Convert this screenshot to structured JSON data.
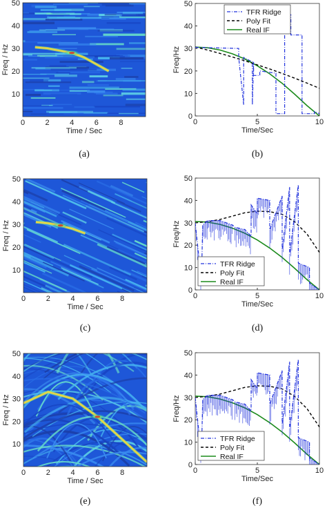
{
  "figure": {
    "panels": [
      {
        "id": "a",
        "caption": "(a)",
        "xlabel": "Time / Sec",
        "ylabel": "Freq / Hz",
        "xticks": [
          "0",
          "2",
          "4",
          "6",
          "8"
        ],
        "yticks": [
          "10",
          "20",
          "30",
          "40",
          "50"
        ]
      },
      {
        "id": "b",
        "caption": "(b)",
        "xlabel": "Time/Sec",
        "ylabel": "Freq/Hz",
        "xticks": [
          "0",
          "5",
          "10"
        ],
        "yticks": [
          "0",
          "10",
          "20",
          "30",
          "40",
          "50"
        ],
        "legend": [
          "TFR Ridge",
          "Poly Fit",
          "Real IF"
        ]
      },
      {
        "id": "c",
        "caption": "(c)",
        "xlabel": "Time / Sec",
        "ylabel": "Freq / Hz",
        "xticks": [
          "0",
          "2",
          "4",
          "6",
          "8"
        ],
        "yticks": [
          "10",
          "20",
          "30",
          "40",
          "50"
        ]
      },
      {
        "id": "d",
        "caption": "(d)",
        "xlabel": "Time/Sec",
        "ylabel": "Freq/Hz",
        "xticks": [
          "0",
          "5",
          "10"
        ],
        "yticks": [
          "0",
          "10",
          "20",
          "30",
          "40",
          "50"
        ],
        "legend": [
          "TFR Ridge",
          "Poly Fit",
          "Real IF"
        ]
      },
      {
        "id": "e",
        "caption": "(e)",
        "xlabel": "Time / Sec",
        "ylabel": "Freq / Hz",
        "xticks": [
          "0",
          "2",
          "4",
          "6",
          "8"
        ],
        "yticks": [
          "10",
          "20",
          "30",
          "40",
          "50"
        ]
      },
      {
        "id": "f",
        "caption": "(f)",
        "xlabel": "Time/Sec",
        "ylabel": "Freq/Hz",
        "xticks": [
          "0",
          "5",
          "10"
        ],
        "yticks": [
          "0",
          "10",
          "20",
          "30",
          "40",
          "50"
        ],
        "legend": [
          "TFR Ridge",
          "Poly Fit",
          "Real IF"
        ]
      }
    ],
    "colors": {
      "ridge": "#2233dd",
      "poly": "#000000",
      "real": "#1a8a1a",
      "spectrogram_base": "#1e57d8"
    }
  },
  "chart_data": [
    {
      "type": "heatmap",
      "panel": "a",
      "xlabel": "Time / Sec",
      "ylabel": "Freq / Hz",
      "xlim": [
        0,
        10
      ],
      "ylim": [
        0,
        50
      ],
      "ridge_hint": {
        "x": [
          1,
          2,
          3,
          4,
          5,
          6,
          7
        ],
        "y": [
          30.5,
          30,
          29,
          28,
          26,
          23,
          20
        ]
      }
    },
    {
      "type": "line",
      "panel": "b",
      "xlabel": "Time/Sec",
      "ylabel": "Freq/Hz",
      "xlim": [
        0,
        10
      ],
      "ylim": [
        0,
        50
      ],
      "legend_position": "top-right",
      "series": [
        {
          "name": "TFR Ridge",
          "x": [
            0,
            3.5,
            3.5,
            3.9,
            3.9,
            4.6,
            4.6,
            4.7,
            4.7,
            5.2,
            5.2,
            6.5,
            6.5,
            7.2,
            7.2,
            7.7,
            7.7,
            8.6,
            8.6,
            9.6,
            9.6,
            10
          ],
          "y": [
            30.5,
            30,
            26,
            5,
            26,
            24,
            5,
            24,
            18,
            18,
            20,
            19,
            1,
            1,
            45,
            45,
            36,
            36,
            1,
            1,
            2,
            1
          ]
        },
        {
          "name": "Poly Fit",
          "x": [
            0,
            1,
            2,
            3,
            4,
            5,
            6,
            7,
            8,
            9,
            10
          ],
          "y": [
            30.6,
            29.3,
            27.8,
            26.2,
            24.5,
            22.7,
            20.9,
            18.9,
            16.8,
            14.6,
            12.3
          ]
        },
        {
          "name": "Real IF",
          "x": [
            0,
            1,
            2,
            3,
            4,
            5,
            6,
            7,
            8,
            9,
            10
          ],
          "y": [
            30.6,
            30.3,
            29.3,
            27.6,
            25.3,
            22.3,
            18.7,
            14.5,
            9.7,
            4.6,
            0
          ]
        }
      ]
    },
    {
      "type": "heatmap",
      "panel": "c",
      "xlabel": "Time / Sec",
      "ylabel": "Freq / Hz",
      "xlim": [
        0,
        10
      ],
      "ylim": [
        0,
        50
      ],
      "ridge_hint": {
        "x": [
          1,
          2,
          3,
          4,
          5
        ],
        "y": [
          31,
          30.5,
          29.5,
          28,
          26
        ]
      }
    },
    {
      "type": "line",
      "panel": "d",
      "xlabel": "Time/Sec",
      "ylabel": "Freq/Hz",
      "xlim": [
        0,
        10
      ],
      "ylim": [
        0,
        50
      ],
      "legend_position": "bottom-left",
      "series": [
        {
          "name": "TFR Ridge",
          "x": [
            0,
            0.5,
            0.6,
            1,
            2,
            3,
            3.2,
            4,
            4.5,
            4.5,
            5,
            5,
            6,
            6,
            7,
            7,
            7.6,
            7.6,
            8.3,
            8.3,
            9.2,
            9.2,
            10
          ],
          "y": [
            30,
            4,
            29,
            31,
            31,
            29,
            28,
            27,
            24,
            38,
            34,
            41,
            40,
            27,
            42,
            18,
            46,
            16,
            47,
            12,
            10,
            3,
            0
          ]
        },
        {
          "name": "Poly Fit",
          "x": [
            0,
            1,
            2,
            3,
            4,
            5,
            6,
            7,
            8,
            9,
            10
          ],
          "y": [
            30,
            30.5,
            31.5,
            33,
            34.5,
            35.2,
            35,
            33.8,
            30.5,
            25,
            16.8
          ]
        },
        {
          "name": "Real IF",
          "x": [
            0,
            1,
            2,
            3,
            4,
            5,
            6,
            7,
            8,
            9,
            10
          ],
          "y": [
            30.6,
            30.3,
            29.3,
            27.6,
            25.3,
            22.3,
            18.7,
            14.5,
            9.7,
            4.6,
            0
          ]
        }
      ]
    },
    {
      "type": "heatmap",
      "panel": "e",
      "xlabel": "Time / Sec",
      "ylabel": "Freq / Hz",
      "xlim": [
        0,
        10
      ],
      "ylim": [
        0,
        50
      ],
      "ridge_hint": {
        "x": [
          0,
          2,
          4,
          6,
          8,
          10
        ],
        "y": [
          28,
          33,
          30,
          22,
          12,
          2
        ]
      }
    },
    {
      "type": "line",
      "panel": "f",
      "xlabel": "Time/Sec",
      "ylabel": "Freq/Hz",
      "xlim": [
        0,
        10
      ],
      "ylim": [
        0,
        50
      ],
      "legend_position": "bottom-left",
      "series": [
        {
          "name": "TFR Ridge",
          "x": [
            0,
            0.5,
            0.6,
            1,
            2,
            3,
            3.2,
            4,
            4.5,
            4.5,
            5,
            5,
            6,
            6,
            7,
            7,
            7.6,
            7.6,
            8.3,
            8.3,
            9.2,
            9.2,
            10
          ],
          "y": [
            30,
            4,
            29,
            31,
            31,
            29,
            28,
            27,
            24,
            38,
            34,
            41,
            40,
            27,
            42,
            18,
            46,
            16,
            47,
            12,
            10,
            3,
            0
          ]
        },
        {
          "name": "Poly Fit",
          "x": [
            0,
            1,
            2,
            3,
            4,
            5,
            6,
            7,
            8,
            9,
            10
          ],
          "y": [
            30,
            30.5,
            31.5,
            33,
            34.5,
            35.2,
            35,
            33.8,
            30.5,
            25,
            16.8
          ]
        },
        {
          "name": "Real IF",
          "x": [
            0,
            1,
            2,
            3,
            4,
            5,
            6,
            7,
            8,
            9,
            10
          ],
          "y": [
            30.6,
            30.3,
            29.3,
            27.6,
            25.3,
            22.3,
            18.7,
            14.5,
            9.7,
            4.6,
            0
          ]
        }
      ]
    }
  ]
}
